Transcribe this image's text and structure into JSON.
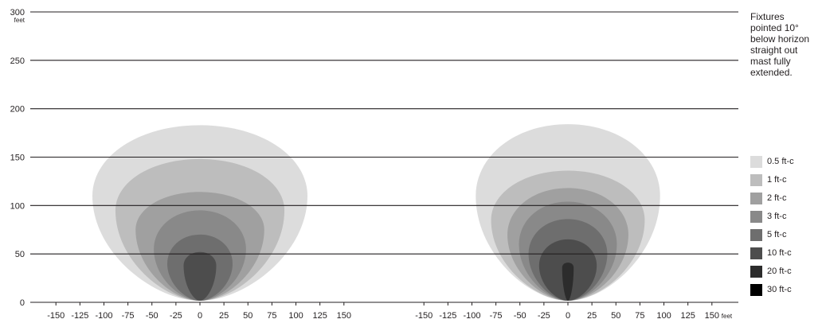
{
  "chart_data": {
    "type": "heatmap",
    "y_axis": {
      "ticks": [
        0,
        50,
        100,
        150,
        200,
        250,
        300
      ],
      "unit_label": "feet",
      "ylim": [
        0,
        300
      ]
    },
    "x_axis": {
      "ticks": [
        -150,
        -125,
        -100,
        -75,
        -50,
        -25,
        0,
        25,
        50,
        75,
        100,
        125,
        150
      ],
      "unit_label": "feet",
      "xlim": [
        -175,
        175
      ]
    },
    "grid": "horizontal",
    "note": [
      "Fixtures",
      "pointed 10°",
      "below horizon",
      "straight out",
      "mast fully",
      "extended."
    ],
    "legend_position": "right",
    "levels": [
      {
        "label": "0.5 ft-c",
        "color": "#dcdcdc"
      },
      {
        "label": "1 ft-c",
        "color": "#bdbdbd"
      },
      {
        "label": "2 ft-c",
        "color": "#a0a0a0"
      },
      {
        "label": "3 ft-c",
        "color": "#898989"
      },
      {
        "label": "5 ft-c",
        "color": "#6e6e6e"
      },
      {
        "label": "10 ft-c",
        "color": "#4d4d4d"
      },
      {
        "label": "20 ft-c",
        "color": "#2c2c2c"
      },
      {
        "label": "30 ft-c",
        "color": "#000000"
      }
    ],
    "plots": [
      {
        "contours": [
          {
            "level": "0.5 ft-c",
            "half_width": 112,
            "max_distance": 183,
            "widest_at": 110
          },
          {
            "level": "1 ft-c",
            "half_width": 88,
            "max_distance": 148,
            "widest_at": 95
          },
          {
            "level": "2 ft-c",
            "half_width": 67,
            "max_distance": 114,
            "widest_at": 75
          },
          {
            "level": "3 ft-c",
            "half_width": 48,
            "max_distance": 95,
            "widest_at": 55
          },
          {
            "level": "5 ft-c",
            "half_width": 34,
            "max_distance": 70,
            "widest_at": 40
          },
          {
            "level": "10 ft-c",
            "half_width": 17,
            "max_distance": 52,
            "widest_at": 38
          }
        ]
      },
      {
        "contours": [
          {
            "level": "0.5 ft-c",
            "half_width": 96,
            "max_distance": 184,
            "widest_at": 110
          },
          {
            "level": "1 ft-c",
            "half_width": 80,
            "max_distance": 136,
            "widest_at": 85
          },
          {
            "level": "2 ft-c",
            "half_width": 63,
            "max_distance": 118,
            "widest_at": 70
          },
          {
            "level": "3 ft-c",
            "half_width": 51,
            "max_distance": 104,
            "widest_at": 60
          },
          {
            "level": "5 ft-c",
            "half_width": 41,
            "max_distance": 86,
            "widest_at": 50
          },
          {
            "level": "10 ft-c",
            "half_width": 30,
            "max_distance": 65,
            "widest_at": 38
          },
          {
            "level": "20 ft-c",
            "half_width": 6,
            "max_distance": 41,
            "widest_at": 36
          }
        ]
      }
    ]
  }
}
